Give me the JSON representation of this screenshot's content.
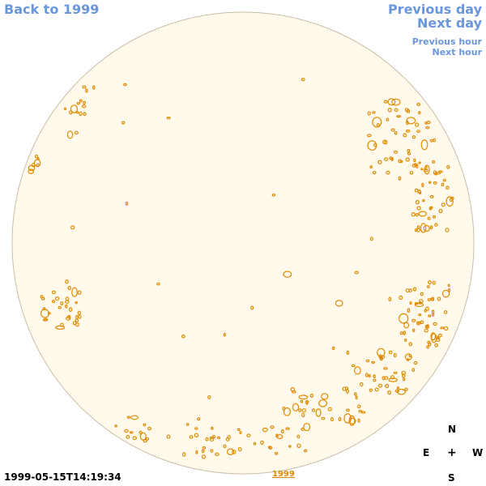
{
  "nav": {
    "back_label": "Back to 1999",
    "prev_day_label": "Previous day",
    "next_day_label": "Next day",
    "prev_hour_label": "Previous hour",
    "next_hour_label": "Next hour"
  },
  "footer": {
    "timestamp": "1999-05-15T14:19:34",
    "year_link": "1999"
  },
  "compass": {
    "north": "N",
    "east": "E",
    "center": "+",
    "west": "W",
    "south": "S"
  },
  "colors": {
    "disk_fill": "#fffaeb",
    "disk_edge": "#c8bea8",
    "contour": "#e08a00",
    "link": "#6a96dc"
  }
}
